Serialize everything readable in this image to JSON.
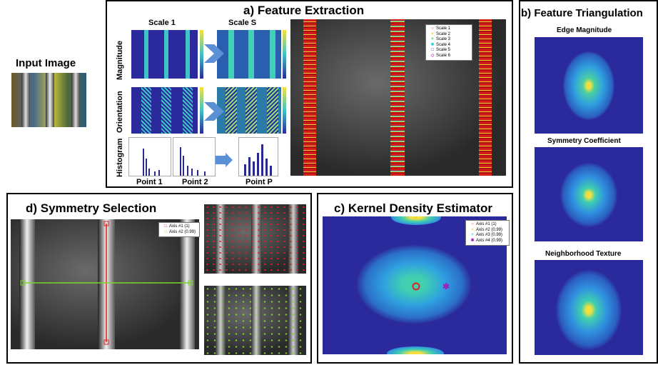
{
  "input": {
    "title": "Input Image"
  },
  "panel_a": {
    "title": "a) Feature Extraction",
    "scale1": "Scale 1",
    "scaleS": "Scale S",
    "row_magnitude": "Magnitude",
    "row_orientation": "Orientation",
    "row_histogram": "Histogram",
    "point1": "Point 1",
    "point2": "Point 2",
    "pointP": "Point P",
    "legend": [
      "Scale 1",
      "Scale 2",
      "Scale 3",
      "Scale 4",
      "Scale 5",
      "Scale 6"
    ]
  },
  "panel_b": {
    "title": "b) Feature Triangulation",
    "edge": "Edge Magnitude",
    "symmetry": "Symmetry Coefficient",
    "texture": "Neighborhood Texture"
  },
  "panel_c": {
    "title": "c) Kernel Density Estimator",
    "legend": [
      "Axis #1 (1)",
      "Axis #2 (0.99)",
      "Axis #3 (0.99)",
      "Axis #4 (0.99)"
    ]
  },
  "panel_d": {
    "title": "d) Symmetry Selection",
    "legend": [
      "Axis #1 (1)",
      "Axis #2 (0.99)"
    ]
  },
  "colors": {
    "red": "#e02020",
    "green": "#7cd62a",
    "heat_bg": "#2b2a9c"
  }
}
